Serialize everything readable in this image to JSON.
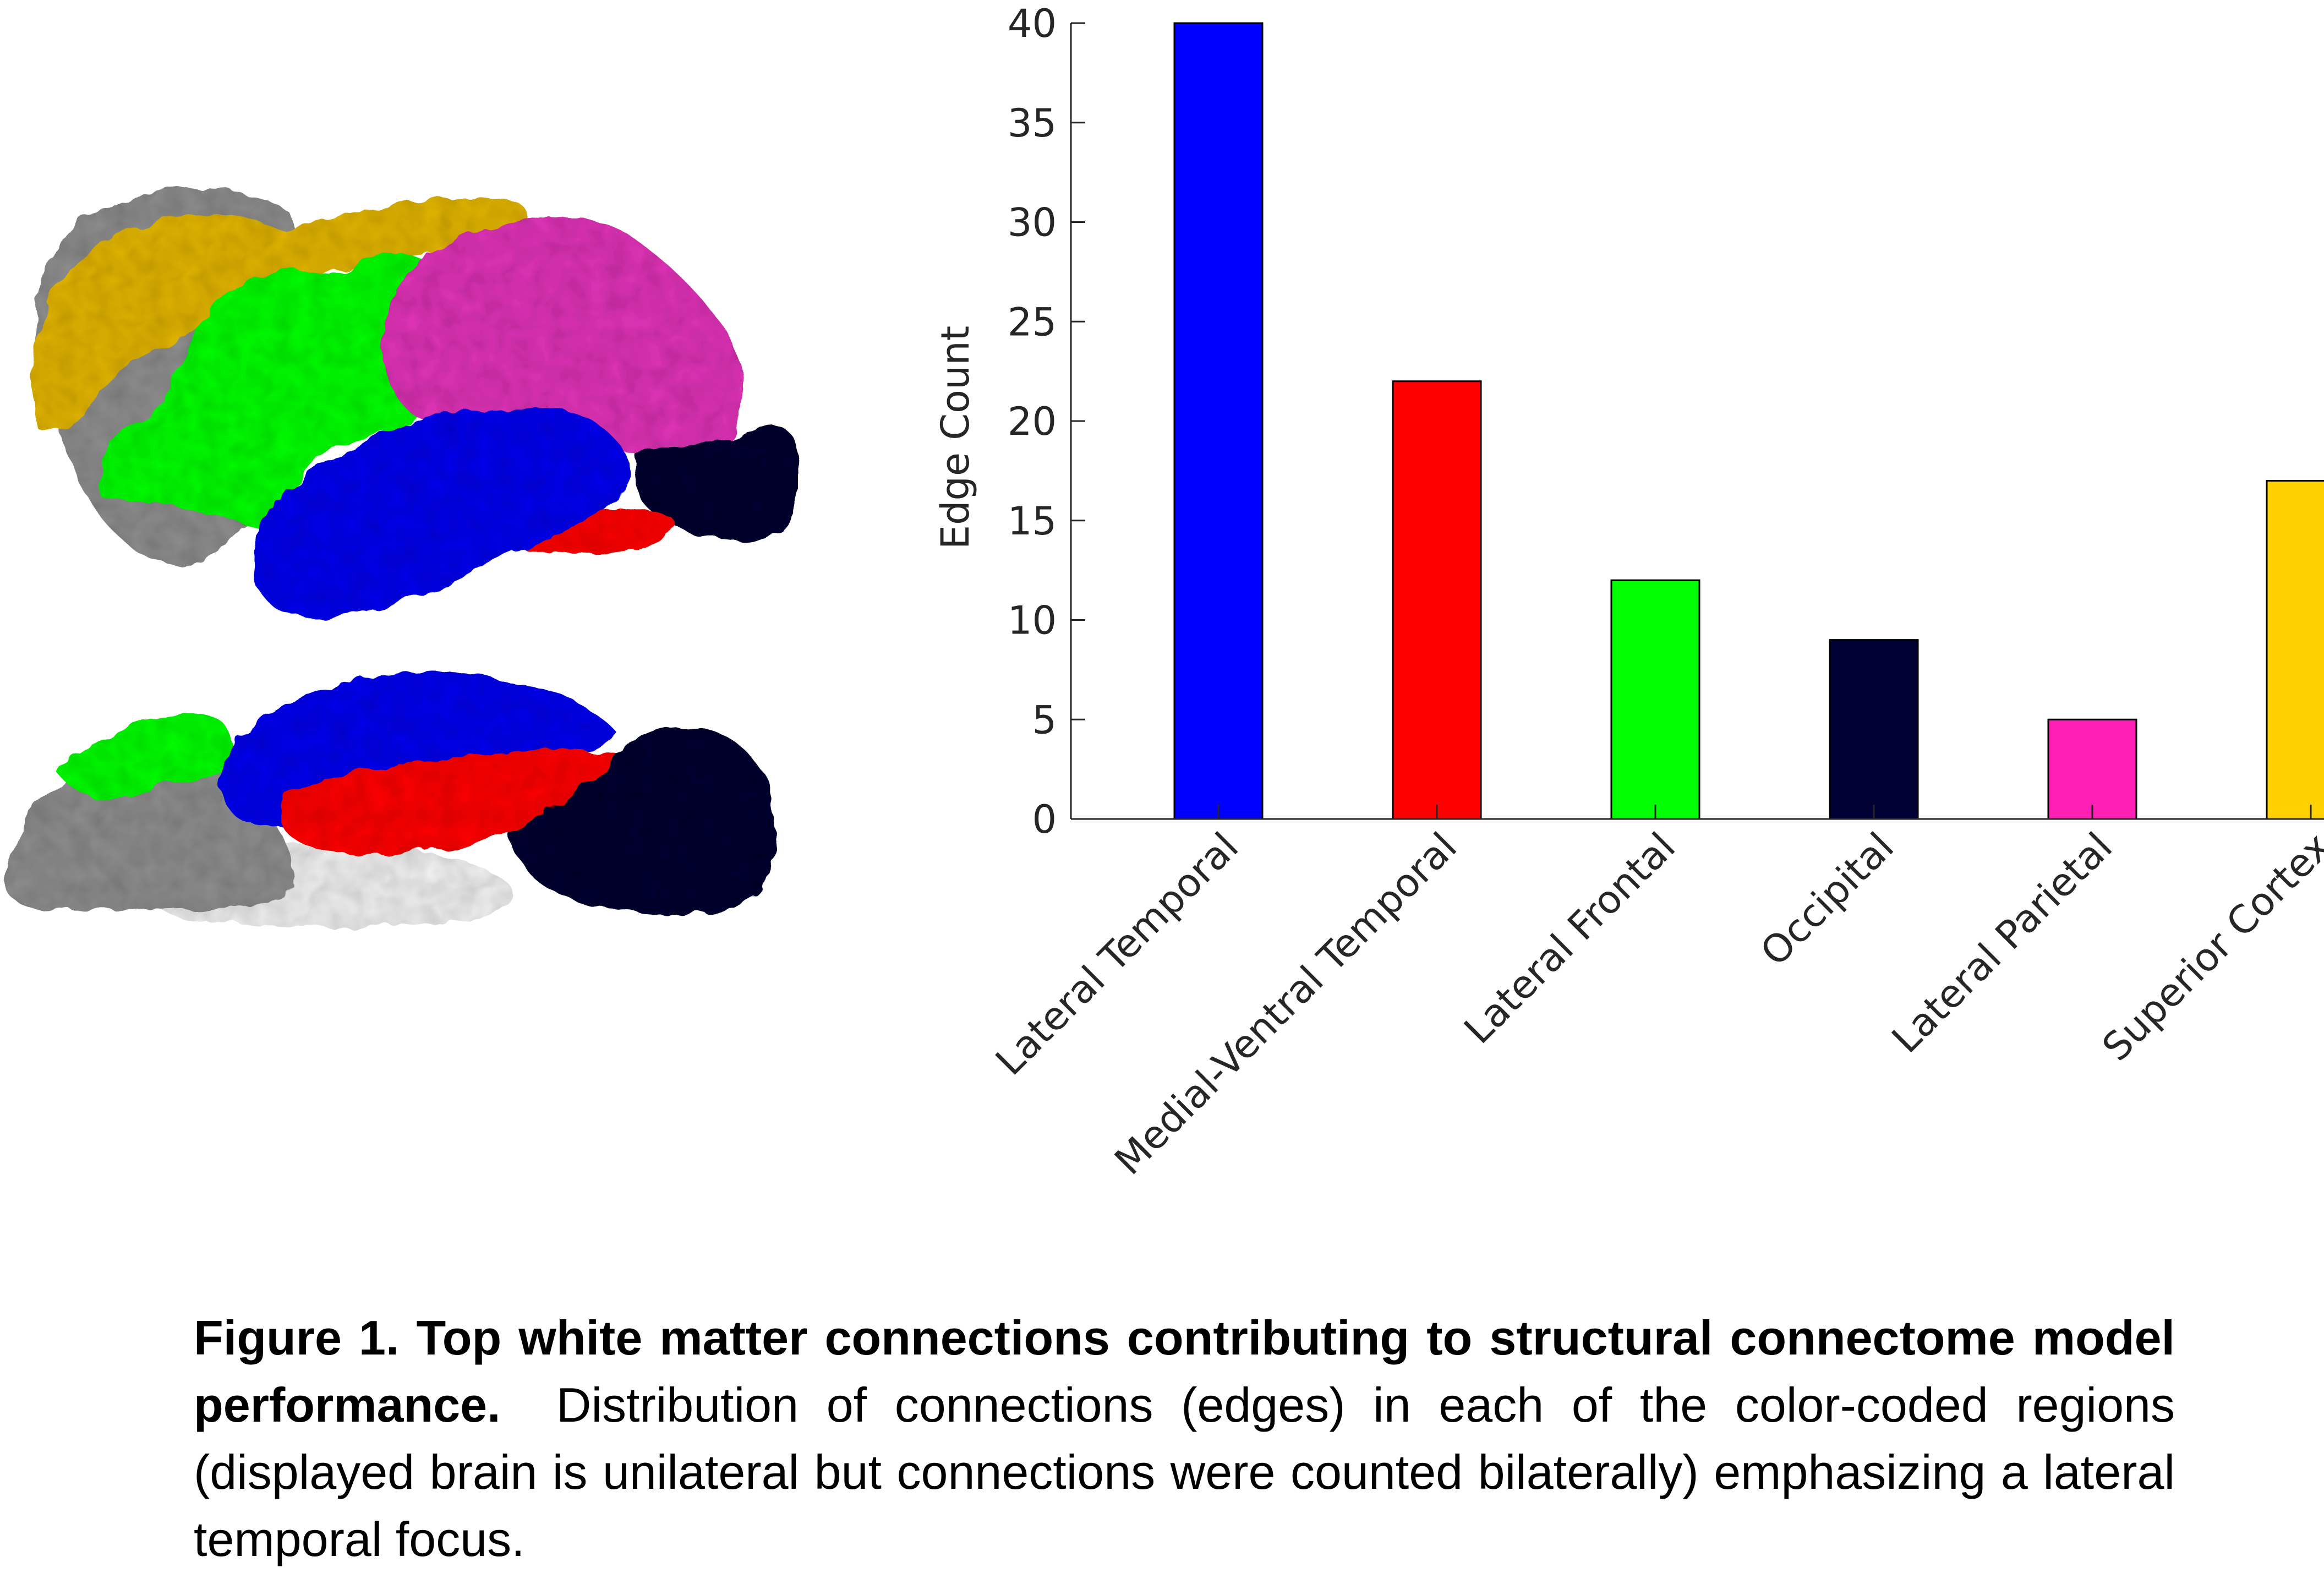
{
  "colors": {
    "lateral_temporal": "#0000ff",
    "medial_ventral_temporal": "#ff0000",
    "lateral_frontal": "#00ff00",
    "occipital": "#000033",
    "lateral_parietal": "#ff1fb4",
    "superior_cortex": "#ffd100",
    "cortex_gray": "#8f8f8f",
    "white_matter": "#f2f2f2"
  },
  "chart_data": {
    "type": "bar",
    "categories": [
      "Lateral Temporal",
      "Medial-Ventral Temporal",
      "Lateral Frontal",
      "Occipital",
      "Lateral Parietal",
      "Superior Cortex"
    ],
    "values": [
      40,
      22,
      12,
      9,
      5,
      17
    ],
    "colors": [
      "#0000ff",
      "#ff0000",
      "#00ff00",
      "#000033",
      "#ff1fb4",
      "#ffd100"
    ],
    "title": "",
    "xlabel": "",
    "ylabel": "Edge Count",
    "ylim": [
      0,
      40
    ],
    "yticks": [
      0,
      5,
      10,
      15,
      20,
      25,
      30,
      35,
      40
    ],
    "grid": false,
    "legend": "none"
  },
  "caption": {
    "label": "Figure 1. Top white matter connections contributing to structural connectome model performance.",
    "text": "Distribution of connections (edges) in each of the color-coded regions (displayed brain is unilateral but connections were counted bilaterally) emphasizing a lateral temporal focus."
  }
}
